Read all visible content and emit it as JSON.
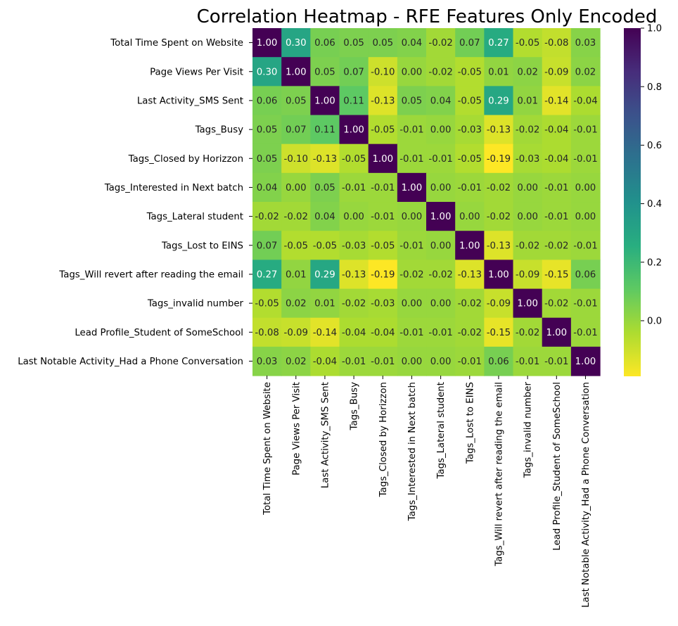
{
  "chart_data": {
    "type": "heatmap",
    "title": "Correlation Heatmap - RFE Features Only Encoded",
    "colormap": "viridis_r",
    "vmin": -0.19,
    "vmax": 1.0,
    "labels": [
      "Total Time Spent on Website",
      "Page Views Per Visit",
      "Last Activity_SMS Sent",
      "Tags_Busy",
      "Tags_Closed by Horizzon",
      "Tags_Interested in Next batch",
      "Tags_Lateral student",
      "Tags_Lost to EINS",
      "Tags_Will revert after reading the email",
      "Tags_invalid number",
      "Lead Profile_Student of SomeSchool",
      "Last Notable Activity_Had a Phone Conversation"
    ],
    "values": [
      [
        1.0,
        0.3,
        0.06,
        0.05,
        0.05,
        0.04,
        -0.02,
        0.07,
        0.27,
        -0.05,
        -0.08,
        0.03
      ],
      [
        0.3,
        1.0,
        0.05,
        0.07,
        -0.1,
        -0.0,
        -0.02,
        -0.05,
        0.01,
        0.02,
        -0.09,
        0.02
      ],
      [
        0.06,
        0.05,
        1.0,
        0.11,
        -0.13,
        0.05,
        0.04,
        -0.05,
        0.29,
        0.01,
        -0.14,
        -0.04
      ],
      [
        0.05,
        0.07,
        0.11,
        1.0,
        -0.05,
        -0.01,
        -0.0,
        -0.03,
        -0.13,
        -0.02,
        -0.04,
        -0.01
      ],
      [
        0.05,
        -0.1,
        -0.13,
        -0.05,
        1.0,
        -0.01,
        -0.01,
        -0.05,
        -0.19,
        -0.03,
        -0.04,
        -0.01
      ],
      [
        0.04,
        -0.0,
        0.05,
        -0.01,
        -0.01,
        1.0,
        -0.0,
        -0.01,
        -0.02,
        -0.0,
        -0.01,
        -0.0
      ],
      [
        -0.02,
        -0.02,
        0.04,
        -0.0,
        -0.01,
        -0.0,
        1.0,
        -0.0,
        -0.02,
        -0.0,
        -0.01,
        -0.0
      ],
      [
        0.07,
        -0.05,
        -0.05,
        -0.03,
        -0.05,
        -0.01,
        -0.0,
        1.0,
        -0.13,
        -0.02,
        -0.02,
        -0.01
      ],
      [
        0.27,
        0.01,
        0.29,
        -0.13,
        -0.19,
        -0.02,
        -0.02,
        -0.13,
        1.0,
        -0.09,
        -0.15,
        0.06
      ],
      [
        -0.05,
        0.02,
        0.01,
        -0.02,
        -0.03,
        -0.0,
        -0.0,
        -0.02,
        -0.09,
        1.0,
        -0.02,
        -0.01
      ],
      [
        -0.08,
        -0.09,
        -0.14,
        -0.04,
        -0.04,
        -0.01,
        -0.01,
        -0.02,
        -0.15,
        -0.02,
        1.0,
        -0.01
      ],
      [
        0.03,
        0.02,
        -0.04,
        -0.01,
        -0.01,
        -0.0,
        -0.0,
        -0.01,
        0.06,
        -0.01,
        -0.01,
        1.0
      ]
    ],
    "colorbar_ticks": [
      0.0,
      0.2,
      0.4,
      0.6,
      0.8,
      1.0
    ],
    "colorbar_tick_labels": [
      "0.0",
      "0.2",
      "0.4",
      "0.6",
      "0.8",
      "1.0"
    ]
  }
}
